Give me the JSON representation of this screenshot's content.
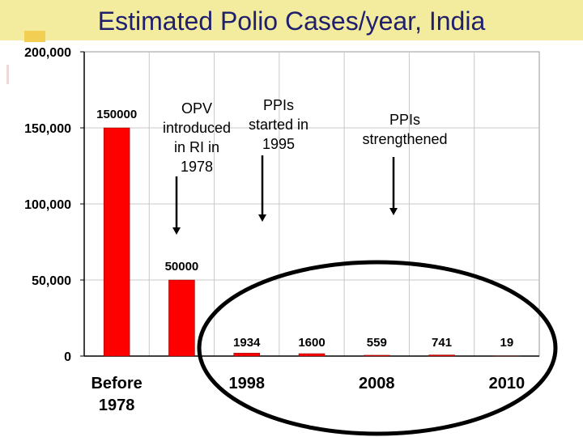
{
  "title": "Estimated Polio Cases/year, India",
  "chart_data": {
    "type": "bar",
    "categories": [
      "Before 1978",
      "",
      "1998",
      "",
      "2008",
      "",
      "2010"
    ],
    "values": [
      150000,
      50000,
      1934,
      1600,
      559,
      741,
      19
    ],
    "data_labels": [
      "150000",
      "50000",
      "1934",
      "1600",
      "559",
      "741",
      "19"
    ],
    "x_tick_labels": [
      "Before\n1978",
      "1998",
      "2008",
      "2010"
    ],
    "y_ticks": [
      0,
      50000,
      100000,
      150000,
      200000
    ],
    "y_tick_labels": [
      "0",
      "50,000",
      "100,000",
      "150,000",
      "200,000"
    ],
    "ylim": [
      0,
      200000
    ],
    "bar_color": "#ff0000",
    "grid": true,
    "annotations": [
      {
        "text": "OPV\nintroduced\nin RI in\n1978",
        "points_to": "Before 1978 / 1998 gap"
      },
      {
        "text": "PPIs\nstarted in\n1995",
        "points_to": "1998"
      },
      {
        "text": "PPIs\nstrengthened",
        "points_to": "2008"
      }
    ]
  }
}
